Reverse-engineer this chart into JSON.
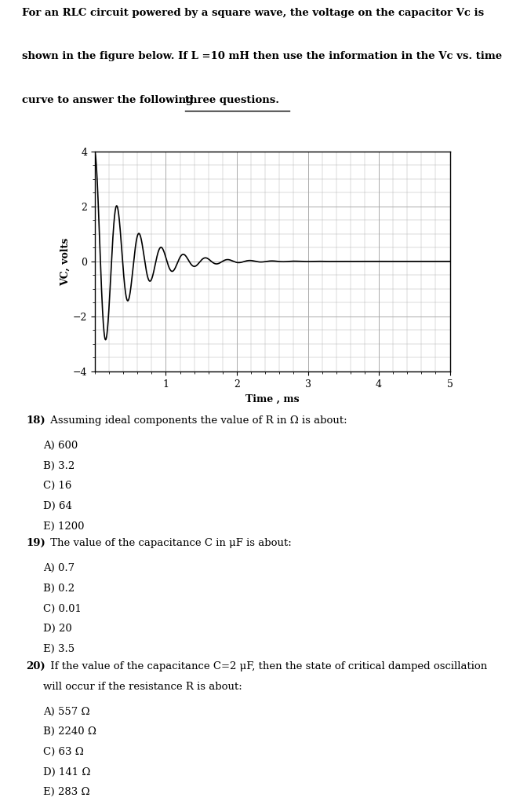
{
  "header_line1": "For an RLC circuit powered by a square wave, the voltage on the capacitor Vc is",
  "header_line2": "shown in the figure below. If L =10 mH then use the information in the Vc vs. time",
  "header_line3a": "curve to answer the following ",
  "header_line3b": "three questions.",
  "ylabel": "VC, volts",
  "xlabel": "Time , ms",
  "xlim": [
    0,
    5
  ],
  "ylim": [
    -4,
    4
  ],
  "yticks": [
    -4,
    -2,
    0,
    2,
    4
  ],
  "xticks": [
    1,
    2,
    3,
    4,
    5
  ],
  "q18_bold": "18)",
  "q18_text": " Assuming ideal components the value of R in Ω is about:",
  "q18_choices": [
    "A) 600",
    "B) 3.2",
    "C) 16",
    "D) 64",
    "E) 1200"
  ],
  "q19_bold": "19)",
  "q19_text": " The value of the capacitance C in μF is about:",
  "q19_choices": [
    "A) 0.7",
    "B) 0.2",
    "C) 0.01",
    "D) 20",
    "E) 3.5"
  ],
  "q20_bold": "20)",
  "q20_text1": " If the value of the capacitance C=2 μF, then the state of critical damped oscillation",
  "q20_text2": "will occur if the resistance R is about:",
  "q20_choices": [
    "A) 557 Ω",
    "B) 2240 Ω",
    "C) 63 Ω",
    "D) 141 Ω",
    "E) 283 Ω"
  ],
  "bg_color": "#ffffff",
  "plot_bg": "#ffffff",
  "line_color": "#000000",
  "grid_color": "#aaaaaa",
  "separator_color": "#cccccc",
  "alpha_decay": 2.2,
  "f_osc": 3.2,
  "amplitude": 4.0
}
